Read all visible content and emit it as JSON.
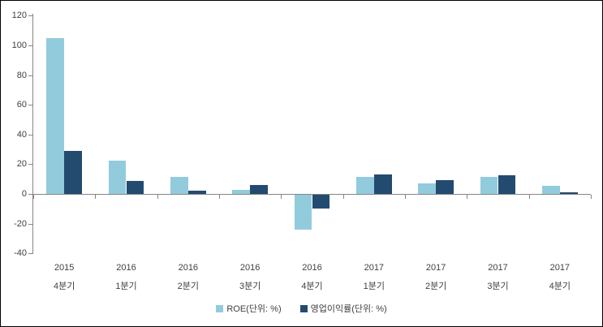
{
  "chart_data": {
    "type": "bar",
    "title": "",
    "xlabel": "",
    "ylabel": "",
    "categories": [
      {
        "year": "2015",
        "quarter": "4분기"
      },
      {
        "year": "2016",
        "quarter": "1분기"
      },
      {
        "year": "2016",
        "quarter": "2분기"
      },
      {
        "year": "2016",
        "quarter": "3분기"
      },
      {
        "year": "2016",
        "quarter": "4분기"
      },
      {
        "year": "2017",
        "quarter": "1분기"
      },
      {
        "year": "2017",
        "quarter": "2분기"
      },
      {
        "year": "2017",
        "quarter": "3분기"
      },
      {
        "year": "2017",
        "quarter": "4분기"
      }
    ],
    "series": [
      {
        "name": "ROE(단위: %)",
        "color": "#92CBDC",
        "values": [
          105,
          22.6,
          11.8,
          3.0,
          -23.5,
          11.8,
          7.2,
          11.8,
          5.8
        ]
      },
      {
        "name": "영업이익률(단위: %)",
        "color": "#234B70",
        "values": [
          29,
          9.0,
          2.6,
          6.4,
          -9.6,
          13.6,
          9.8,
          12.6,
          1.5
        ]
      }
    ],
    "y_axis": {
      "min": -40,
      "max": 120,
      "tick_step": 20,
      "ticks": [
        120,
        100,
        80,
        60,
        40,
        20,
        0,
        -20,
        -40
      ]
    },
    "grid": false,
    "legend_position": "bottom",
    "colors": {
      "axis": "#858585",
      "label": "#3F3F3F",
      "background": "#FFFFFF",
      "border": "#000000"
    }
  }
}
